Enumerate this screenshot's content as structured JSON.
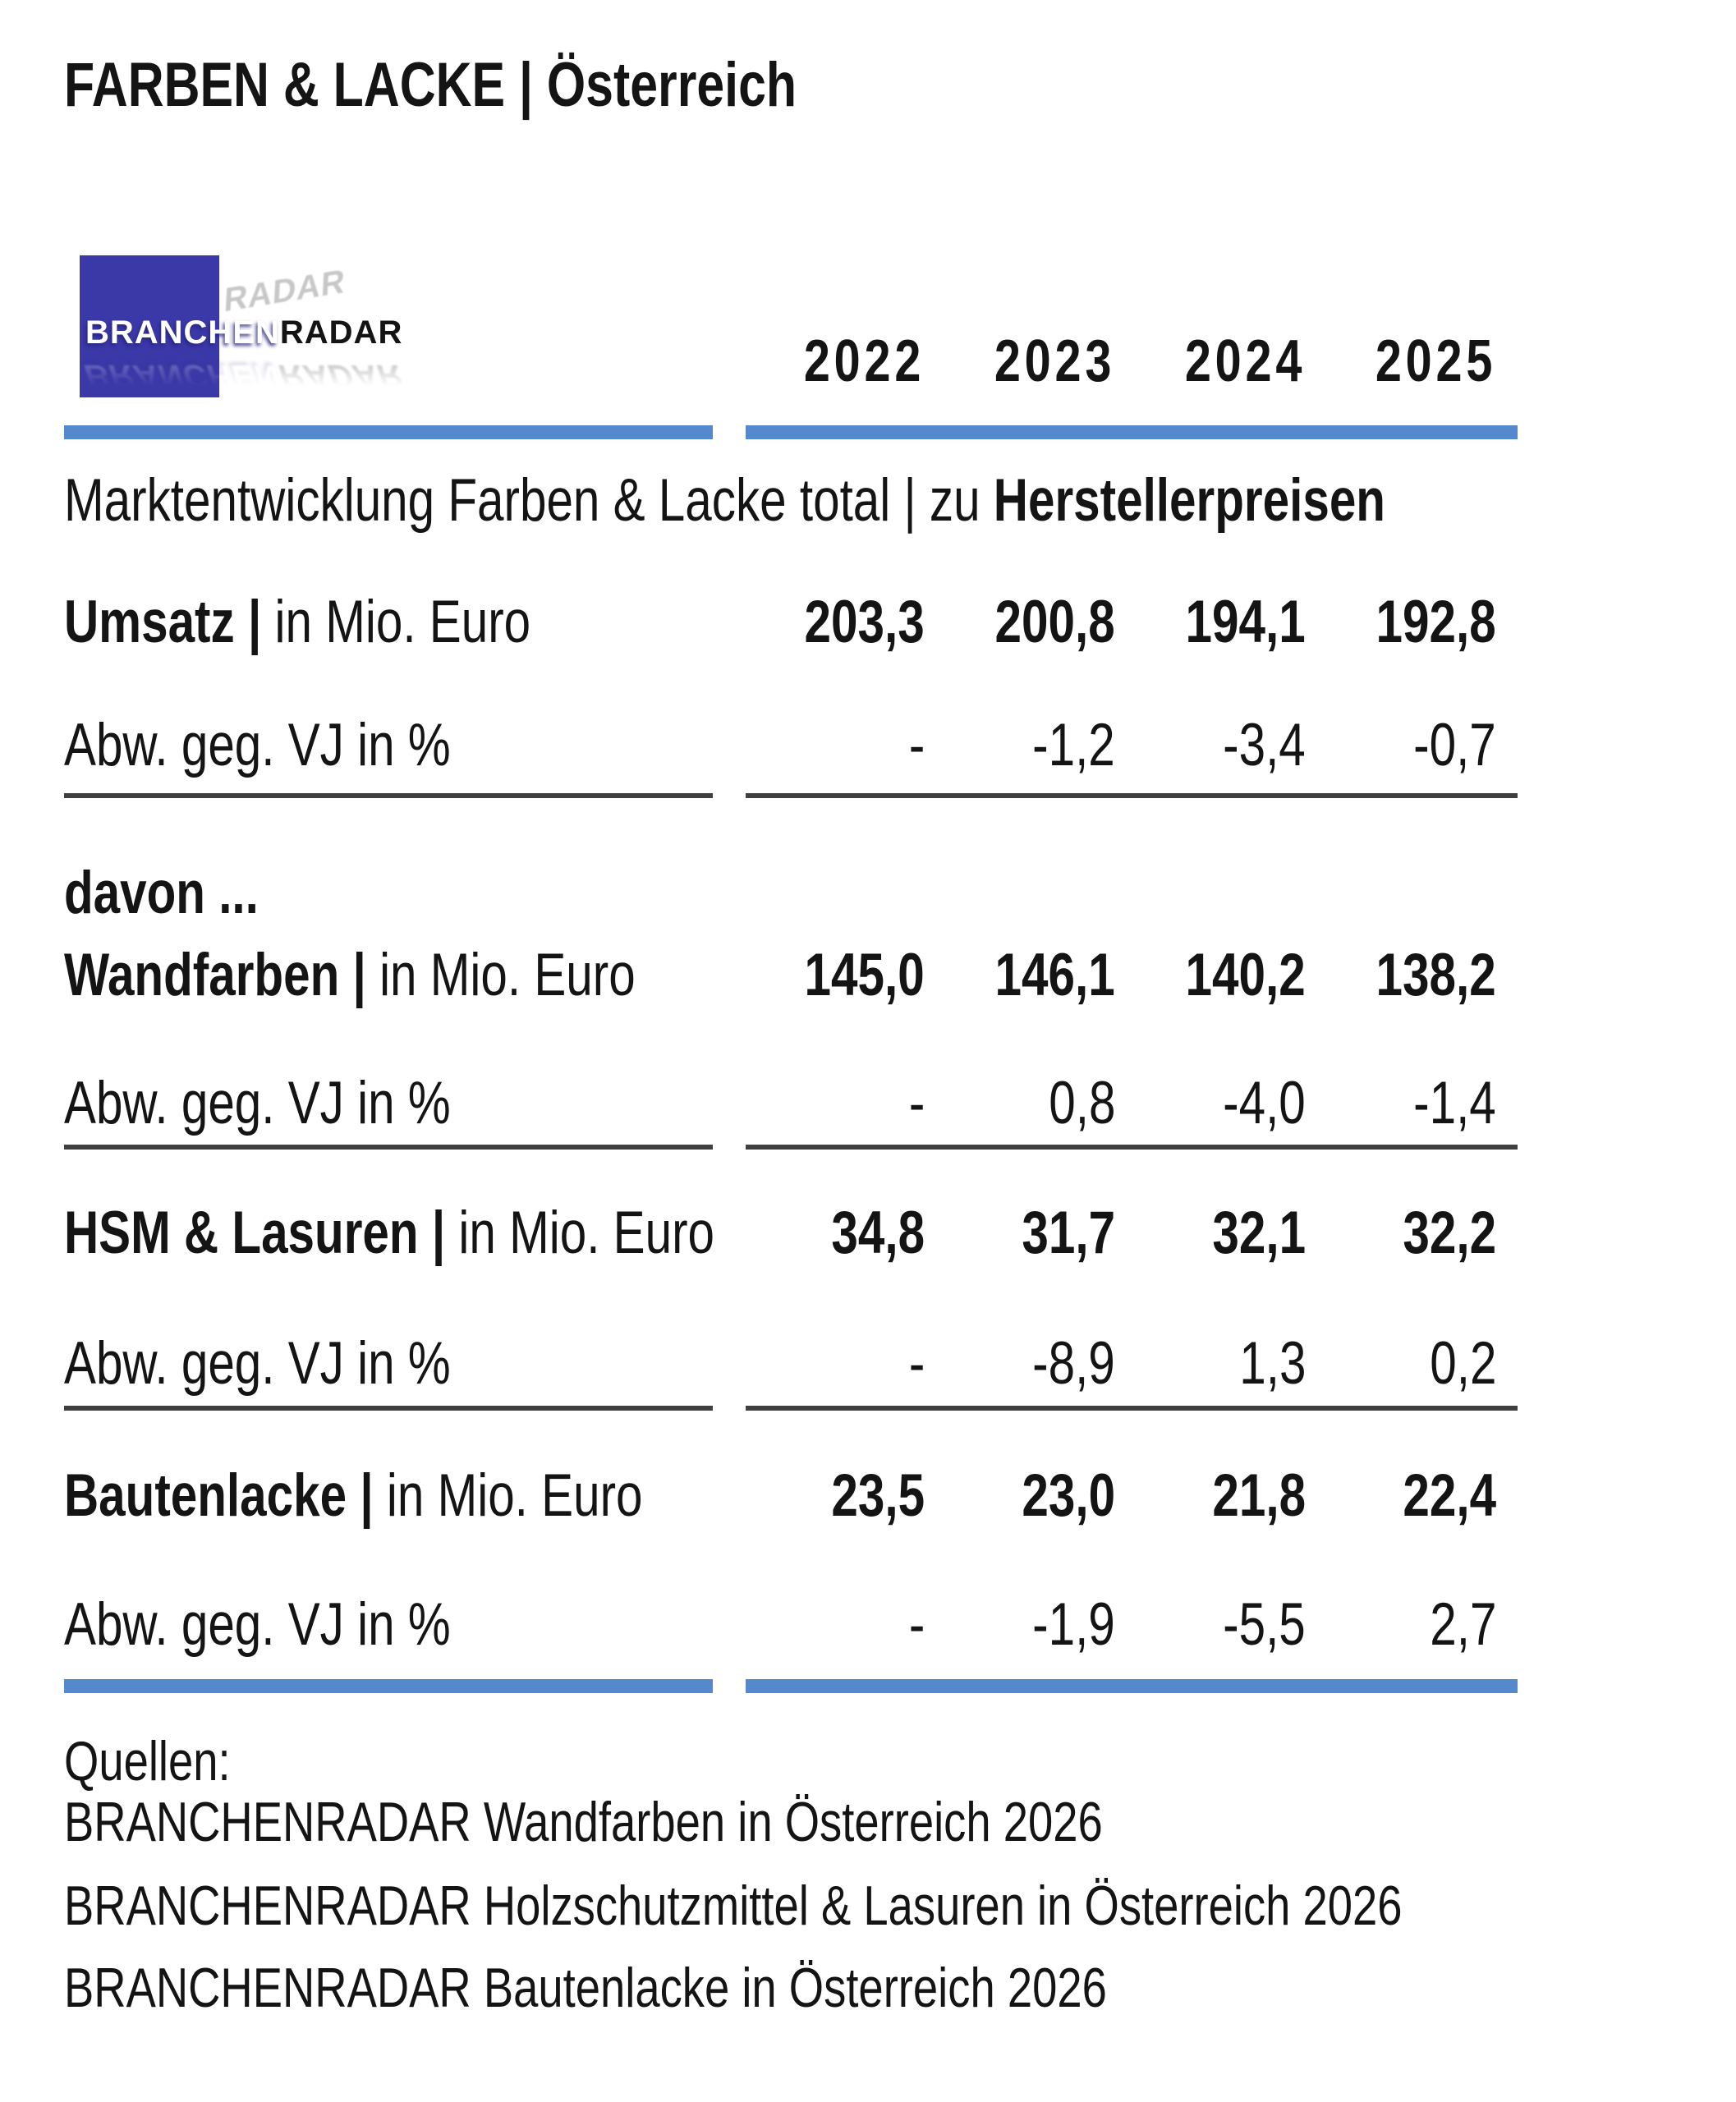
{
  "page": {
    "title": "FARBEN & LACKE | Österreich"
  },
  "logo": {
    "primary": "BRANCHEN",
    "secondary": "RADAR"
  },
  "table": {
    "years": [
      "2022",
      "2023",
      "2024",
      "2025"
    ],
    "section_heading": {
      "regular": "Marktentwicklung Farben & Lacke total | zu ",
      "bold": "Herstellerpreisen"
    },
    "separator": "|",
    "davon_label": "davon ...",
    "groups": [
      {
        "name": "Umsatz",
        "unit": "in Mio. Euro",
        "values": [
          "203,3",
          "200,8",
          "194,1",
          "192,8"
        ],
        "dev_label": "Abw. geg. VJ in %",
        "devs": [
          "-",
          "-1,2",
          "-3,4",
          "-0,7"
        ]
      },
      {
        "name": "Wandfarben",
        "unit": "in Mio. Euro",
        "values": [
          "145,0",
          "146,1",
          "140,2",
          "138,2"
        ],
        "dev_label": "Abw. geg. VJ in %",
        "devs": [
          "-",
          "0,8",
          "-4,0",
          "-1,4"
        ]
      },
      {
        "name": "HSM & Lasuren",
        "unit": "in Mio. Euro",
        "values": [
          "34,8",
          "31,7",
          "32,1",
          "32,2"
        ],
        "dev_label": "Abw. geg. VJ in %",
        "devs": [
          "-",
          "-8,9",
          "1,3",
          "0,2"
        ]
      },
      {
        "name": "Bautenlacke",
        "unit": "in Mio. Euro",
        "values": [
          "23,5",
          "23,0",
          "21,8",
          "22,4"
        ],
        "dev_label": "Abw. geg. VJ in %",
        "devs": [
          "-",
          "-1,9",
          "-5,5",
          "2,7"
        ]
      }
    ]
  },
  "footer": {
    "heading": "Quellen:",
    "sources": [
      "BRANCHENRADAR Wandfarben in Österreich 2026",
      "BRANCHENRADAR Holzschutzmittel & Lasuren in Österreich 2026",
      "BRANCHENRADAR Bautenlacke in Österreich 2026"
    ]
  },
  "colors": {
    "accent_bar": "#5589CE",
    "rule": "#404040",
    "logo_square": "#3B38A8",
    "text": "#141414"
  }
}
